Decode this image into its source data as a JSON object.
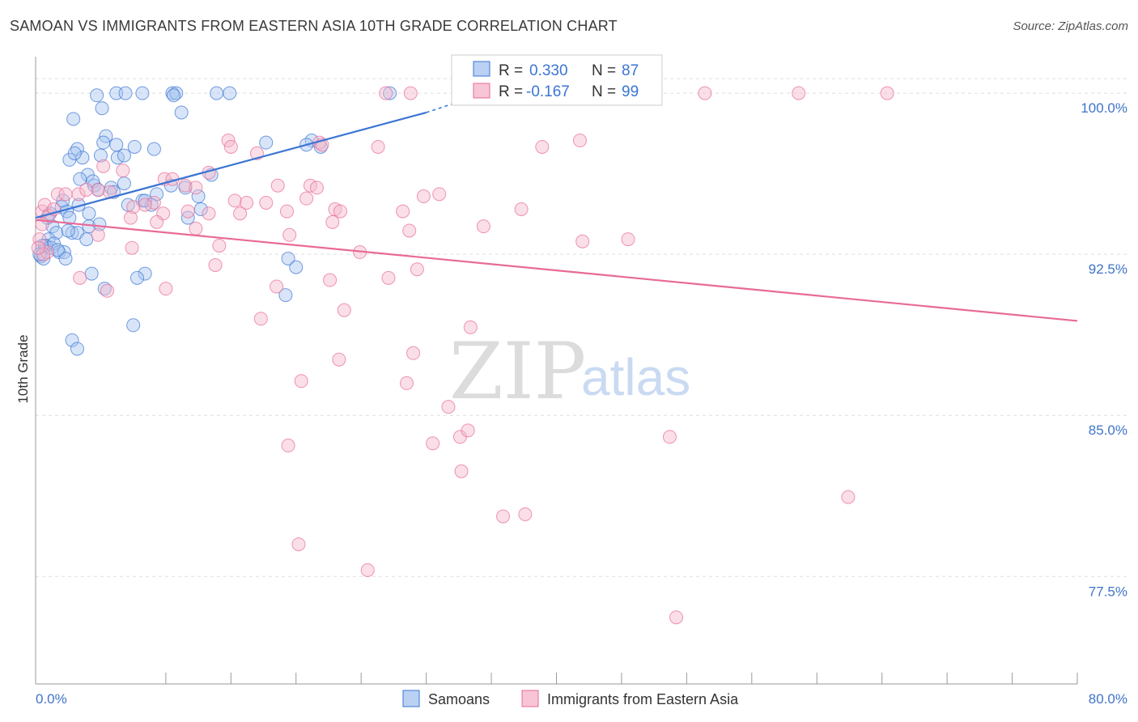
{
  "title": "SAMOAN VS IMMIGRANTS FROM EASTERN ASIA 10TH GRADE CORRELATION CHART",
  "source": "Source: ZipAtlas.com",
  "colors": {
    "blue": "#3a75d4",
    "blue_fill": "#a9c6f0",
    "pink": "#e86a97",
    "pink_fill": "#f5b7cb",
    "tick": "#3f74c9",
    "grid": "#dddddd"
  },
  "legend": {
    "rows": [
      {
        "r_label": "R =",
        "r_value": "0.330",
        "n_label": "N =",
        "n_value": "87"
      },
      {
        "r_label": "R =",
        "r_value": "-0.167",
        "n_label": "N =",
        "n_value": "99"
      }
    ]
  },
  "watermark": {
    "zip": "ZIP",
    "atlas": "atlas"
  },
  "chart_data": {
    "type": "scatter",
    "title": "SAMOAN VS IMMIGRANTS FROM EASTERN ASIA 10TH GRADE CORRELATION CHART",
    "xlabel": "",
    "ylabel": "10th Grade",
    "xlim": [
      0,
      80
    ],
    "ylim": [
      72.5,
      101.7
    ],
    "x_tick_labels": [
      "0.0%",
      "80.0%"
    ],
    "y_ticks": [
      100.0,
      92.5,
      85.0,
      77.5
    ],
    "y_tick_labels": [
      "100.0%",
      "92.5%",
      "85.0%",
      "77.5%"
    ],
    "grid": true,
    "series": [
      {
        "name": "Samoans",
        "color": "#3a75d4",
        "r": 0.33,
        "n": 87,
        "trend": {
          "x": [
            0.0,
            30.0
          ],
          "y": [
            94.2,
            99.1
          ],
          "dashed_to": [
            32.0,
            99.5
          ]
        },
        "points": [
          [
            4.7,
            99.9
          ],
          [
            6.2,
            100.0
          ],
          [
            6.9,
            100.0
          ],
          [
            8.2,
            100.0
          ],
          [
            10.5,
            100.0
          ],
          [
            10.8,
            100.0
          ],
          [
            10.6,
            99.9
          ],
          [
            13.9,
            100.0
          ],
          [
            14.9,
            100.0
          ],
          [
            27.2,
            100.0
          ],
          [
            5.1,
            99.3
          ],
          [
            11.2,
            99.1
          ],
          [
            2.9,
            98.8
          ],
          [
            5.4,
            98.0
          ],
          [
            7.6,
            97.5
          ],
          [
            9.1,
            97.4
          ],
          [
            5.2,
            97.7
          ],
          [
            6.2,
            97.6
          ],
          [
            3.2,
            97.4
          ],
          [
            3.6,
            97.0
          ],
          [
            2.6,
            96.9
          ],
          [
            6.3,
            97.0
          ],
          [
            5.0,
            97.1
          ],
          [
            6.8,
            97.1
          ],
          [
            17.7,
            97.7
          ],
          [
            21.2,
            97.8
          ],
          [
            20.8,
            97.6
          ],
          [
            21.9,
            97.5
          ],
          [
            13.5,
            96.2
          ],
          [
            4.0,
            96.2
          ],
          [
            3.4,
            96.0
          ],
          [
            4.5,
            95.7
          ],
          [
            5.8,
            95.6
          ],
          [
            6.8,
            95.8
          ],
          [
            8.2,
            95.0
          ],
          [
            9.3,
            95.3
          ],
          [
            11.5,
            95.6
          ],
          [
            12.5,
            95.2
          ],
          [
            3.3,
            94.8
          ],
          [
            2.0,
            94.7
          ],
          [
            2.4,
            94.5
          ],
          [
            4.1,
            94.4
          ],
          [
            7.1,
            94.8
          ],
          [
            8.9,
            94.8
          ],
          [
            12.7,
            94.6
          ],
          [
            11.7,
            94.2
          ],
          [
            1.1,
            94.4
          ],
          [
            1.3,
            93.8
          ],
          [
            1.6,
            93.5
          ],
          [
            2.8,
            93.5
          ],
          [
            3.2,
            93.5
          ],
          [
            3.9,
            93.2
          ],
          [
            4.1,
            93.8
          ],
          [
            2.5,
            93.6
          ],
          [
            1.0,
            93.2
          ],
          [
            0.8,
            92.9
          ],
          [
            0.7,
            92.9
          ],
          [
            1.2,
            92.8
          ],
          [
            1.4,
            93.0
          ],
          [
            0.5,
            92.9
          ],
          [
            0.4,
            92.4
          ],
          [
            0.6,
            92.3
          ],
          [
            1.8,
            92.6
          ],
          [
            2.2,
            92.6
          ],
          [
            2.3,
            92.3
          ],
          [
            19.4,
            92.3
          ],
          [
            20.0,
            91.9
          ],
          [
            4.3,
            91.6
          ],
          [
            8.4,
            91.6
          ],
          [
            7.8,
            91.4
          ],
          [
            5.3,
            90.9
          ],
          [
            19.2,
            90.6
          ],
          [
            7.5,
            89.2
          ],
          [
            2.8,
            88.5
          ],
          [
            3.2,
            88.1
          ],
          [
            0.3,
            92.5
          ],
          [
            2.1,
            95.0
          ],
          [
            0.9,
            94.2
          ],
          [
            6.0,
            95.4
          ],
          [
            4.4,
            95.9
          ],
          [
            3.0,
            97.2
          ],
          [
            8.4,
            95.0
          ],
          [
            10.4,
            95.7
          ],
          [
            4.9,
            93.9
          ],
          [
            1.7,
            92.7
          ],
          [
            4.8,
            95.5
          ],
          [
            2.6,
            94.2
          ]
        ]
      },
      {
        "name": "Immigrants from Eastern Asia",
        "color": "#e86a97",
        "r": -0.167,
        "n": 99,
        "trend": {
          "x": [
            0.0,
            80.0
          ],
          "y": [
            94.1,
            89.4
          ]
        },
        "points": [
          [
            26.9,
            100.0
          ],
          [
            28.8,
            100.0
          ],
          [
            35.6,
            100.0
          ],
          [
            43.0,
            100.0
          ],
          [
            51.4,
            100.0
          ],
          [
            58.6,
            100.0
          ],
          [
            65.4,
            100.0
          ],
          [
            14.8,
            97.8
          ],
          [
            15.0,
            97.5
          ],
          [
            21.8,
            97.7
          ],
          [
            22.0,
            97.6
          ],
          [
            26.3,
            97.5
          ],
          [
            17.0,
            97.2
          ],
          [
            38.9,
            97.5
          ],
          [
            13.3,
            96.3
          ],
          [
            6.7,
            96.4
          ],
          [
            5.2,
            96.6
          ],
          [
            9.9,
            96.0
          ],
          [
            10.5,
            96.0
          ],
          [
            11.5,
            95.7
          ],
          [
            12.3,
            95.6
          ],
          [
            18.6,
            95.7
          ],
          [
            21.1,
            95.7
          ],
          [
            21.6,
            95.6
          ],
          [
            1.7,
            95.3
          ],
          [
            2.3,
            95.3
          ],
          [
            3.3,
            95.3
          ],
          [
            4.8,
            95.5
          ],
          [
            15.3,
            95.0
          ],
          [
            16.2,
            94.9
          ],
          [
            17.7,
            94.9
          ],
          [
            20.8,
            95.1
          ],
          [
            9.1,
            94.9
          ],
          [
            8.4,
            94.8
          ],
          [
            7.5,
            94.7
          ],
          [
            23.0,
            94.6
          ],
          [
            23.4,
            94.5
          ],
          [
            28.2,
            94.5
          ],
          [
            29.8,
            95.2
          ],
          [
            31.0,
            95.3
          ],
          [
            37.3,
            94.6
          ],
          [
            0.5,
            94.5
          ],
          [
            0.7,
            94.8
          ],
          [
            1.0,
            94.3
          ],
          [
            1.4,
            94.6
          ],
          [
            9.8,
            94.4
          ],
          [
            11.7,
            94.5
          ],
          [
            13.3,
            94.4
          ],
          [
            15.7,
            94.4
          ],
          [
            19.3,
            94.5
          ],
          [
            0.5,
            93.9
          ],
          [
            7.3,
            94.2
          ],
          [
            9.3,
            94.0
          ],
          [
            12.3,
            93.7
          ],
          [
            22.8,
            94.0
          ],
          [
            34.4,
            93.8
          ],
          [
            28.7,
            93.6
          ],
          [
            19.5,
            93.4
          ],
          [
            4.8,
            93.4
          ],
          [
            0.3,
            93.2
          ],
          [
            42.0,
            93.1
          ],
          [
            45.5,
            93.2
          ],
          [
            14.1,
            92.9
          ],
          [
            7.4,
            92.8
          ],
          [
            24.9,
            92.6
          ],
          [
            0.9,
            92.6
          ],
          [
            0.6,
            92.5
          ],
          [
            13.8,
            92.0
          ],
          [
            29.3,
            91.8
          ],
          [
            27.1,
            91.4
          ],
          [
            22.6,
            91.3
          ],
          [
            3.4,
            91.4
          ],
          [
            5.5,
            90.8
          ],
          [
            10.0,
            90.9
          ],
          [
            18.5,
            91.0
          ],
          [
            23.7,
            89.9
          ],
          [
            17.3,
            89.5
          ],
          [
            33.4,
            89.1
          ],
          [
            29.0,
            87.9
          ],
          [
            23.3,
            87.6
          ],
          [
            20.4,
            86.6
          ],
          [
            28.5,
            86.5
          ],
          [
            31.7,
            85.4
          ],
          [
            32.6,
            84.0
          ],
          [
            33.2,
            84.3
          ],
          [
            30.5,
            83.7
          ],
          [
            19.4,
            83.6
          ],
          [
            32.7,
            82.4
          ],
          [
            62.4,
            81.2
          ],
          [
            35.9,
            80.3
          ],
          [
            37.6,
            80.4
          ],
          [
            20.2,
            79.0
          ],
          [
            25.5,
            77.8
          ],
          [
            49.2,
            75.6
          ],
          [
            48.7,
            84.0
          ],
          [
            41.8,
            97.8
          ],
          [
            0.2,
            92.8
          ],
          [
            3.9,
            95.5
          ],
          [
            5.7,
            95.4
          ]
        ]
      }
    ]
  },
  "bottom_legend": [
    {
      "label": "Samoans"
    },
    {
      "label": "Immigrants from Eastern Asia"
    }
  ]
}
